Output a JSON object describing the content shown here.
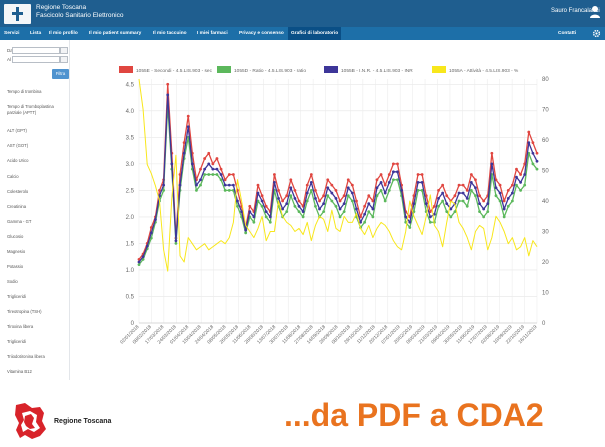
{
  "header": {
    "brand_line1": "Regione Toscana",
    "brand_line2": "Fascicolo Sanitario Elettronico",
    "user_name": "Sauro Francalanci"
  },
  "nav": {
    "items": [
      {
        "label": "Servizi",
        "active": false
      },
      {
        "label": "Lista",
        "active": false
      },
      {
        "label": "Il mio profilo",
        "active": false
      },
      {
        "label": "Il mio patient summary",
        "active": false
      },
      {
        "label": "Il mio taccuino",
        "active": false
      },
      {
        "label": "I miei farmaci",
        "active": false
      },
      {
        "label": "Privacy e consenso",
        "active": false
      },
      {
        "label": "Grafici di laboratorio",
        "active": true
      }
    ],
    "contacts": "Contatti"
  },
  "sidebar": {
    "date_from_label": "Dal",
    "date_to_label": "Al",
    "filter_button": "Filtra",
    "tests": [
      "Tempo di trombina",
      "Tempo di Tromboplastina parziale (APTT)",
      "ALT (GPT)",
      "AST (GOT)",
      "Acido Urico",
      "Calcio",
      "Colesterolo",
      "Creatinina",
      "Gamma - GT",
      "Glucosio",
      "Magnesio",
      "Potassio",
      "Sodio",
      "Trigliceridi",
      "Tireotropina (TSH)",
      "Tiroxina libera",
      "Trigliceridi",
      "Triiodotironina libera",
      "Vitamina B12"
    ]
  },
  "colors": {
    "header_bg": "#1f5e8f",
    "nav_bg": "#1d6fa8",
    "series_red": "#e04640",
    "series_green": "#5cb85c",
    "series_purple": "#3d3699",
    "series_yellow": "#f8e71c",
    "slogan": "#e9731f"
  },
  "chart_data": {
    "type": "line",
    "legend_position": "top",
    "grid": true,
    "x": [
      "03/01/2018",
      "11/01/2018",
      "18/01/2018",
      "25/01/2018",
      "02/02/2018",
      "09/02/2018",
      "16/02/2018",
      "23/02/2018",
      "02/03/2018",
      "09/03/2018",
      "16/03/2018",
      "23/03/2018",
      "30/03/2018",
      "06/04/2018",
      "13/04/2018",
      "20/04/2018",
      "27/04/2018",
      "04/05/2018",
      "11/05/2018",
      "18/05/2018",
      "25/05/2018",
      "01/06/2018",
      "08/06/2018",
      "15/06/2018",
      "22/06/2018",
      "29/06/2018",
      "06/07/2018",
      "13/07/2018",
      "20/07/2018",
      "27/07/2018",
      "03/08/2018",
      "10/08/2018",
      "17/08/2018",
      "24/08/2018",
      "31/08/2018",
      "07/09/2018",
      "14/09/2018",
      "21/09/2018",
      "28/09/2018",
      "05/10/2018",
      "12/10/2018",
      "19/10/2018",
      "26/10/2018",
      "02/11/2018",
      "09/11/2018",
      "16/11/2018",
      "23/11/2018",
      "30/11/2018",
      "07/12/2018",
      "14/12/2018",
      "21/12/2018",
      "28/12/2018",
      "04/01/2019",
      "11/01/2019",
      "18/01/2019",
      "25/01/2019",
      "01/02/2019",
      "08/02/2019",
      "15/02/2019",
      "22/02/2019",
      "01/03/2019",
      "08/03/2019",
      "15/03/2019",
      "22/03/2019",
      "29/03/2019",
      "05/04/2019",
      "12/04/2019",
      "19/04/2019",
      "26/04/2019",
      "03/05/2019",
      "10/05/2019",
      "17/05/2019",
      "24/05/2019",
      "31/05/2019",
      "07/06/2019",
      "14/06/2019",
      "21/06/2019",
      "28/06/2019",
      "05/07/2019",
      "12/07/2019",
      "19/07/2019",
      "26/07/2019",
      "02/08/2019",
      "09/08/2019",
      "16/08/2019",
      "23/08/2019",
      "30/08/2019",
      "06/09/2019",
      "13/09/2019",
      "20/09/2019",
      "27/09/2019",
      "04/10/2019",
      "11/10/2019",
      "18/10/2019",
      "25/10/2019",
      "01/11/2019",
      "08/11/2019",
      "15/11/2019"
    ],
    "xticks": [
      "02/01/2018",
      "08/02/2018",
      "17/03/2018",
      "24/03/2018",
      "01/04/2018",
      "15/04/2018",
      "24/04/2018",
      "08/05/2018",
      "26/05/2018",
      "11/06/2018",
      "28/06/2018",
      "13/07/2018",
      "30/07/2018",
      "11/08/2018",
      "27/08/2018",
      "14/09/2018",
      "26/09/2018",
      "08/10/2018",
      "29/10/2018",
      "11/12/2018",
      "20/12/2018",
      "07/01/2019",
      "20/02/2019",
      "06/03/2019",
      "21/03/2019",
      "09/04/2019",
      "30/05/2019",
      "11/06/2019",
      "17/07/2019",
      "02/08/2019",
      "10/09/2019",
      "22/10/2019",
      "16/11/2019"
    ],
    "y_left": {
      "ticks": [
        "0",
        "0.5",
        "1.0",
        "1.5",
        "2.0",
        "2.5",
        "3.0",
        "3.5",
        "4.0",
        "4.5"
      ],
      "min": 0,
      "max": 4.6
    },
    "y_right": {
      "ticks": [
        "0",
        "10",
        "20",
        "30",
        "40",
        "50",
        "60",
        "70",
        "80"
      ],
      "min": 0,
      "max": 80
    },
    "series": [
      {
        "name": "1055E - Secondi - 4.5.LIS.903 - sec",
        "color": "#e04640",
        "axis": "left",
        "values": [
          1.2,
          1.3,
          1.5,
          1.8,
          2.0,
          2.5,
          2.7,
          4.5,
          3.2,
          1.6,
          2.8,
          3.4,
          3.9,
          3.2,
          2.7,
          2.9,
          3.1,
          3.2,
          3.0,
          3.1,
          2.9,
          2.7,
          2.8,
          2.8,
          2.5,
          2.2,
          1.8,
          2.2,
          2.1,
          2.6,
          2.4,
          2.2,
          2.1,
          2.8,
          2.5,
          2.3,
          2.4,
          2.7,
          2.5,
          2.3,
          2.2,
          2.6,
          2.8,
          2.5,
          2.3,
          2.4,
          2.7,
          2.6,
          2.5,
          2.3,
          2.4,
          2.7,
          2.6,
          2.3,
          2.0,
          2.2,
          2.4,
          2.3,
          2.7,
          2.8,
          2.6,
          2.8,
          3.0,
          3.0,
          2.6,
          2.1,
          2.0,
          2.4,
          2.8,
          2.8,
          2.4,
          2.1,
          2.2,
          2.5,
          2.6,
          2.4,
          2.3,
          2.4,
          2.6,
          2.6,
          2.5,
          2.8,
          2.7,
          2.4,
          2.3,
          2.4,
          3.2,
          2.7,
          2.6,
          2.3,
          2.5,
          2.6,
          2.9,
          2.8,
          3.0,
          3.6,
          3.4,
          3.2
        ]
      },
      {
        "name": "1055D - Ratio - 4.5.LIS.903 - ratio",
        "color": "#5cb85c",
        "axis": "left",
        "values": [
          1.1,
          1.2,
          1.4,
          1.6,
          1.9,
          2.3,
          2.5,
          4.1,
          2.9,
          1.5,
          2.5,
          3.1,
          3.5,
          2.9,
          2.5,
          2.6,
          2.8,
          2.8,
          2.8,
          2.8,
          2.7,
          2.5,
          2.5,
          2.5,
          2.2,
          2.0,
          1.7,
          2.0,
          1.9,
          2.3,
          2.2,
          2.0,
          1.9,
          2.5,
          2.2,
          2.0,
          2.1,
          2.4,
          2.2,
          2.1,
          2.0,
          2.3,
          2.5,
          2.2,
          2.0,
          2.1,
          2.4,
          2.3,
          2.2,
          2.0,
          2.1,
          2.4,
          2.3,
          2.0,
          1.8,
          1.9,
          2.1,
          2.0,
          2.4,
          2.5,
          2.3,
          2.5,
          2.7,
          2.7,
          2.4,
          1.9,
          1.8,
          2.1,
          2.5,
          2.5,
          2.1,
          1.9,
          1.9,
          2.2,
          2.3,
          2.1,
          2.0,
          2.1,
          2.3,
          2.3,
          2.2,
          2.5,
          2.4,
          2.1,
          2.0,
          2.1,
          2.8,
          2.4,
          2.3,
          2.0,
          2.2,
          2.3,
          2.6,
          2.5,
          2.6,
          3.2,
          3.0,
          2.9
        ]
      },
      {
        "name": "1055B - I.N.R. - 4.5.LIS.903 - INR",
        "color": "#3d3699",
        "axis": "left",
        "values": [
          1.15,
          1.25,
          1.45,
          1.7,
          1.95,
          2.4,
          2.6,
          4.3,
          3.0,
          1.55,
          2.6,
          3.2,
          3.7,
          3.0,
          2.6,
          2.7,
          2.9,
          3.0,
          2.9,
          2.9,
          2.8,
          2.6,
          2.6,
          2.6,
          2.3,
          2.1,
          1.75,
          2.1,
          2.0,
          2.45,
          2.3,
          2.1,
          2.0,
          2.65,
          2.35,
          2.15,
          2.25,
          2.55,
          2.35,
          2.2,
          2.1,
          2.45,
          2.65,
          2.35,
          2.15,
          2.25,
          2.55,
          2.45,
          2.35,
          2.15,
          2.25,
          2.55,
          2.45,
          2.15,
          1.9,
          2.05,
          2.25,
          2.15,
          2.55,
          2.65,
          2.45,
          2.65,
          2.85,
          2.85,
          2.5,
          2.0,
          1.9,
          2.25,
          2.65,
          2.65,
          2.25,
          2.0,
          2.05,
          2.35,
          2.45,
          2.25,
          2.15,
          2.25,
          2.45,
          2.45,
          2.35,
          2.65,
          2.55,
          2.25,
          2.15,
          2.25,
          3.0,
          2.55,
          2.45,
          2.15,
          2.35,
          2.45,
          2.75,
          2.65,
          2.8,
          3.4,
          3.2,
          3.05
        ]
      },
      {
        "name": "1055A - Attività - 4.5.LIS.903 - %",
        "color": "#f8e71c",
        "axis": "right",
        "values": [
          80,
          70,
          52,
          49,
          45,
          40,
          24,
          17,
          41,
          55,
          22,
          20,
          28,
          26,
          24,
          25,
          26,
          24,
          25,
          26,
          27,
          26,
          28,
          33,
          47,
          40,
          32,
          30,
          28,
          31,
          35,
          27,
          30,
          30,
          40,
          35,
          33,
          32,
          30,
          31,
          29,
          33,
          27,
          32,
          35,
          34,
          30,
          37,
          31,
          30,
          35,
          33,
          33,
          36,
          31,
          29,
          32,
          28,
          31,
          33,
          32,
          30,
          27,
          25,
          24,
          30,
          40,
          35,
          32,
          29,
          35,
          42,
          32,
          30,
          25,
          33,
          40,
          39,
          33,
          31,
          28,
          24,
          30,
          32,
          31,
          24,
          28,
          35,
          33,
          30,
          26,
          28,
          24,
          25,
          28,
          22,
          27,
          25
        ]
      }
    ]
  },
  "footer": {
    "region_label": "Regione Toscana",
    "slogan": "...da PDF a CDA2"
  }
}
